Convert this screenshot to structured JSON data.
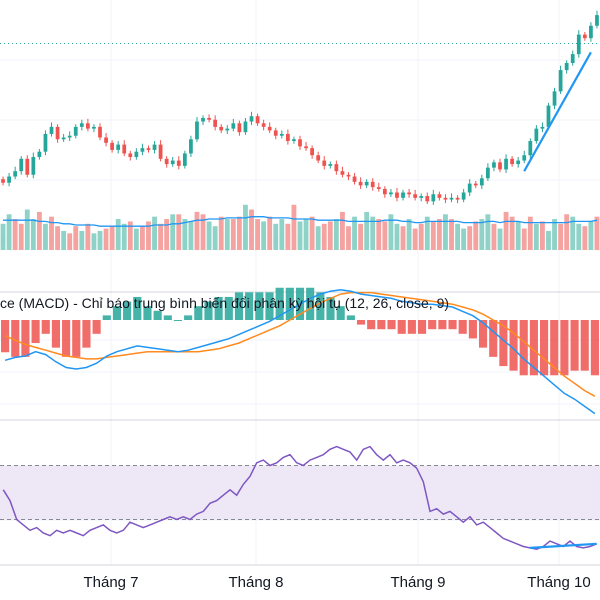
{
  "chart_data": {
    "type": "candlestick",
    "title": "",
    "x_axis": {
      "labels": [
        "Tháng 7",
        "Tháng 8",
        "Tháng 9",
        "Tháng 10"
      ]
    },
    "colors": {
      "up": "#26a69a",
      "down": "#ef5350",
      "volume_up": "#8fd3c8",
      "volume_down": "#f4a3a1",
      "volume_ma": "#2196f3",
      "macd_line": "#2196f3",
      "signal_line": "#ff8a1f",
      "rsi_line": "#7e57c2",
      "rsi_band": "#ede7f6",
      "trendline": "#2196f3",
      "grid": "#f0f3fa",
      "separator": "#d1d4dc"
    },
    "price_panel": {
      "closes": [
        33,
        40,
        46,
        60,
        42,
        62,
        68,
        88,
        96,
        82,
        84,
        86,
        96,
        100,
        94,
        96,
        84,
        78,
        70,
        76,
        66,
        62,
        68,
        72,
        70,
        76,
        60,
        54,
        58,
        52,
        66,
        82,
        102,
        106,
        104,
        96,
        92,
        94,
        100,
        90,
        102,
        108,
        100,
        96,
        92,
        86,
        88,
        80,
        82,
        74,
        72,
        64,
        58,
        52,
        54,
        46,
        42,
        40,
        34,
        30,
        34,
        28,
        26,
        20,
        22,
        16,
        22,
        20,
        16,
        18,
        12,
        20,
        16,
        14,
        16,
        14,
        22,
        32,
        30,
        38,
        50,
        56,
        48,
        60,
        54,
        58,
        64,
        80,
        94,
        96,
        120,
        136,
        160,
        168,
        178,
        200,
        196,
        210,
        222
      ],
      "y_min": 0,
      "y_max": 230,
      "dotted_level": 190
    },
    "volume": {
      "values": [
        2.2,
        3.0,
        2.6,
        2.2,
        3.4,
        2.6,
        3.2,
        2.2,
        2.8,
        2.0,
        1.6,
        1.4,
        2.0,
        1.6,
        2.2,
        1.4,
        1.6,
        1.8,
        2.0,
        2.6,
        2.2,
        2.4,
        1.8,
        2.0,
        2.4,
        2.8,
        2.2,
        2.6,
        3.0,
        3.0,
        2.6,
        2.4,
        3.2,
        3.0,
        2.4,
        2.0,
        2.8,
        2.6,
        2.6,
        2.8,
        3.8,
        3.4,
        2.6,
        2.4,
        2.8,
        2.2,
        2.6,
        2.2,
        3.8,
        2.4,
        2.6,
        2.8,
        2.0,
        2.2,
        2.4,
        2.6,
        3.2,
        2.0,
        2.8,
        2.2,
        3.2,
        2.8,
        2.6,
        2.4,
        3.0,
        2.2,
        2.0,
        2.6,
        1.8,
        2.2,
        2.8,
        2.4,
        2.6,
        3.0,
        2.6,
        2.2,
        1.8,
        2.0,
        2.4,
        2.6,
        3.0,
        2.2,
        1.8,
        3.2,
        2.8,
        2.4,
        1.8,
        2.8,
        2.2,
        2.4,
        1.6,
        2.6,
        2.2,
        3.0,
        2.8,
        2.2,
        2.0,
        2.4,
        2.8
      ],
      "ma": [
        2.5,
        2.5,
        2.5,
        2.5,
        2.5,
        2.5,
        2.4,
        2.4,
        2.3,
        2.3,
        2.2,
        2.2,
        2.1,
        2.1,
        2.1,
        2.1,
        2.0,
        2.0,
        2.0,
        2.0,
        2.0,
        2.0,
        2.0,
        2.0,
        2.0,
        2.1,
        2.1,
        2.1,
        2.2,
        2.2,
        2.3,
        2.4,
        2.5,
        2.5,
        2.6,
        2.6,
        2.6,
        2.7,
        2.7,
        2.7,
        2.7,
        2.8,
        2.8,
        2.8,
        2.7,
        2.7,
        2.7,
        2.7,
        2.6,
        2.6,
        2.6,
        2.6,
        2.5,
        2.5,
        2.5,
        2.5,
        2.5,
        2.4,
        2.4,
        2.4,
        2.4,
        2.4,
        2.4,
        2.5,
        2.5,
        2.5,
        2.4,
        2.4,
        2.3,
        2.3,
        2.4,
        2.4,
        2.4,
        2.4,
        2.4,
        2.4,
        2.3,
        2.3,
        2.3,
        2.3,
        2.4,
        2.4,
        2.3,
        2.4,
        2.4,
        2.4,
        2.3,
        2.3,
        2.3,
        2.3,
        2.3,
        2.3,
        2.3,
        2.3,
        2.4,
        2.4,
        2.4,
        2.4,
        2.5
      ],
      "y_max": 4.2
    },
    "macd_panel": {
      "title": "ce (MACD) - Chỉ báo trung bình biến đổi phân kỳ hội tụ (12, 26, close, 9)",
      "macd": [
        -5.6,
        -5.2,
        -5.0,
        -4.4,
        -4.8,
        -5.8,
        -6.6,
        -6.8,
        -6.6,
        -6.0,
        -5.0,
        -4.4,
        -4.0,
        -3.6,
        -3.8,
        -4.0,
        -4.2,
        -4.4,
        -4.2,
        -3.8,
        -3.4,
        -3.0,
        -2.6,
        -2.0,
        -1.4,
        -0.8,
        -0.2,
        0.6,
        1.4,
        2.2,
        3.0,
        3.6,
        4.0,
        4.2,
        4.0,
        3.6,
        3.4,
        3.2,
        3.0,
        2.6,
        2.4,
        2.2,
        2.2,
        2.0,
        1.8,
        1.2,
        0.6,
        -0.4,
        -1.6,
        -2.8,
        -4.0,
        -5.4,
        -6.6,
        -7.8,
        -9.0,
        -10.2,
        -11.0,
        -12.0,
        -13.0
      ],
      "signal": [
        -2.2,
        -2.8,
        -3.4,
        -3.8,
        -4.2,
        -4.6,
        -5.0,
        -5.2,
        -5.4,
        -5.4,
        -5.2,
        -5.0,
        -4.8,
        -4.6,
        -4.4,
        -4.4,
        -4.4,
        -4.4,
        -4.4,
        -4.4,
        -4.2,
        -4.0,
        -3.6,
        -3.2,
        -2.6,
        -2.0,
        -1.4,
        -0.8,
        0.0,
        0.8,
        1.6,
        2.4,
        3.0,
        3.6,
        3.8,
        3.8,
        3.8,
        3.6,
        3.4,
        3.2,
        3.0,
        2.8,
        2.6,
        2.4,
        2.2,
        1.8,
        1.4,
        0.8,
        0.0,
        -0.8,
        -1.8,
        -3.0,
        -4.2,
        -5.4,
        -6.6,
        -7.8,
        -8.8,
        -9.8,
        -10.6
      ],
      "histogram": [
        -1.4,
        -1.6,
        -1.6,
        -1.0,
        -0.6,
        -1.2,
        -1.6,
        -1.6,
        -1.2,
        -0.6,
        0.2,
        0.6,
        0.8,
        1.0,
        0.6,
        0.4,
        0.2,
        0.0,
        0.2,
        0.6,
        0.8,
        1.0,
        1.0,
        1.2,
        1.2,
        1.2,
        1.2,
        1.4,
        1.4,
        1.4,
        1.4,
        1.2,
        1.0,
        0.6,
        0.2,
        -0.2,
        -0.4,
        -0.4,
        -0.4,
        -0.6,
        -0.6,
        -0.6,
        -0.4,
        -0.4,
        -0.4,
        -0.6,
        -0.8,
        -1.2,
        -1.6,
        -2.0,
        -2.2,
        -2.4,
        -2.4,
        -2.4,
        -2.4,
        -2.4,
        -2.2,
        -2.2,
        -2.4
      ],
      "y_min": -14,
      "y_max": 5
    },
    "rsi_panel": {
      "values": [
        52,
        44,
        30,
        26,
        22,
        24,
        20,
        18,
        22,
        20,
        22,
        20,
        18,
        22,
        24,
        26,
        22,
        20,
        22,
        28,
        26,
        24,
        26,
        28,
        30,
        32,
        30,
        32,
        30,
        34,
        36,
        42,
        44,
        48,
        52,
        48,
        56,
        62,
        72,
        74,
        70,
        72,
        76,
        78,
        72,
        70,
        74,
        76,
        78,
        82,
        84,
        82,
        80,
        74,
        82,
        84,
        78,
        74,
        78,
        72,
        74,
        72,
        68,
        58,
        36,
        38,
        34,
        36,
        32,
        28,
        32,
        26,
        28,
        24,
        20,
        16,
        14,
        12,
        10,
        9,
        8,
        10,
        14,
        12,
        10,
        14,
        10,
        9,
        10,
        12
      ],
      "upper_band": 70,
      "lower_band": 30,
      "y_min": 0,
      "y_max": 100
    }
  }
}
